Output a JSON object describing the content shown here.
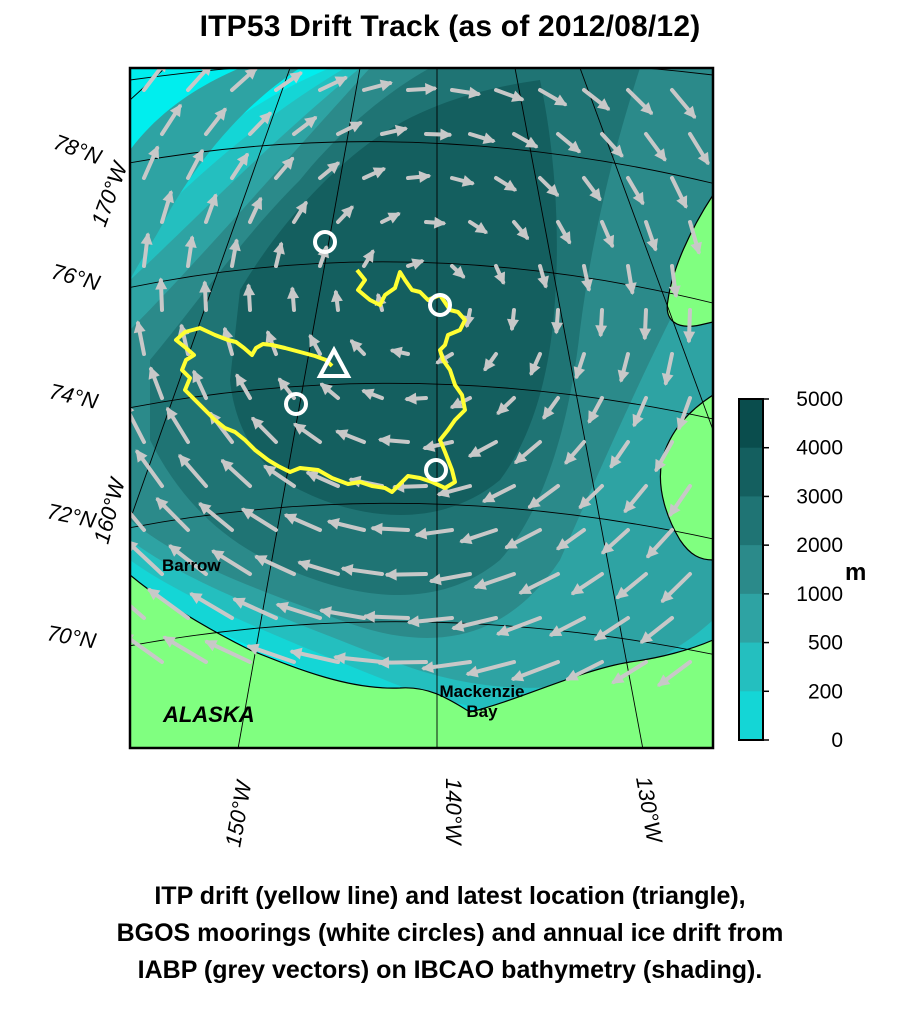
{
  "title": "ITP53 Drift Track (as of 2012/08/12)",
  "lat_labels": [
    "78°N",
    "76°N",
    "74°N",
    "72°N",
    "70°N"
  ],
  "lon_labels_left": [
    "170°W",
    "160°W"
  ],
  "lon_labels_bottom": [
    "150°W",
    "140°W",
    "130°W"
  ],
  "places": {
    "barrow": "Barrow",
    "alaska": "ALASKA",
    "mackenzie_line1": "Mackenzie",
    "mackenzie_line2": "Bay"
  },
  "colorbar": {
    "ticks": [
      "5000",
      "4000",
      "3000",
      "2000",
      "1000",
      "500",
      "200",
      "0"
    ],
    "unit": "m",
    "colors": [
      "#0a4d4d",
      "#145f5f",
      "#1f7474",
      "#2b8a8a",
      "#2ea3a3",
      "#24bfbf",
      "#14d6d6",
      "#00eeee"
    ]
  },
  "colors": {
    "land": "#80ff80",
    "itp_track": "#ffff33",
    "vectors": "#c8c8c8",
    "markers": "#ffffff",
    "frame": "#000000"
  },
  "legend_items": {
    "itp_track": "ITP drift (yellow line)",
    "latest_location": "latest location (triangle)",
    "moorings": "BGOS moorings (white circles)",
    "ice_drift": "annual ice drift from IABP (grey vectors)",
    "bathymetry": "IBCAO bathymetry (shading)"
  },
  "caption": [
    "ITP drift (yellow line) and latest location (triangle),",
    "BGOS moorings (white circles) and annual ice drift from",
    "IABP (grey vectors) on IBCAO bathymetry (shading)."
  ]
}
